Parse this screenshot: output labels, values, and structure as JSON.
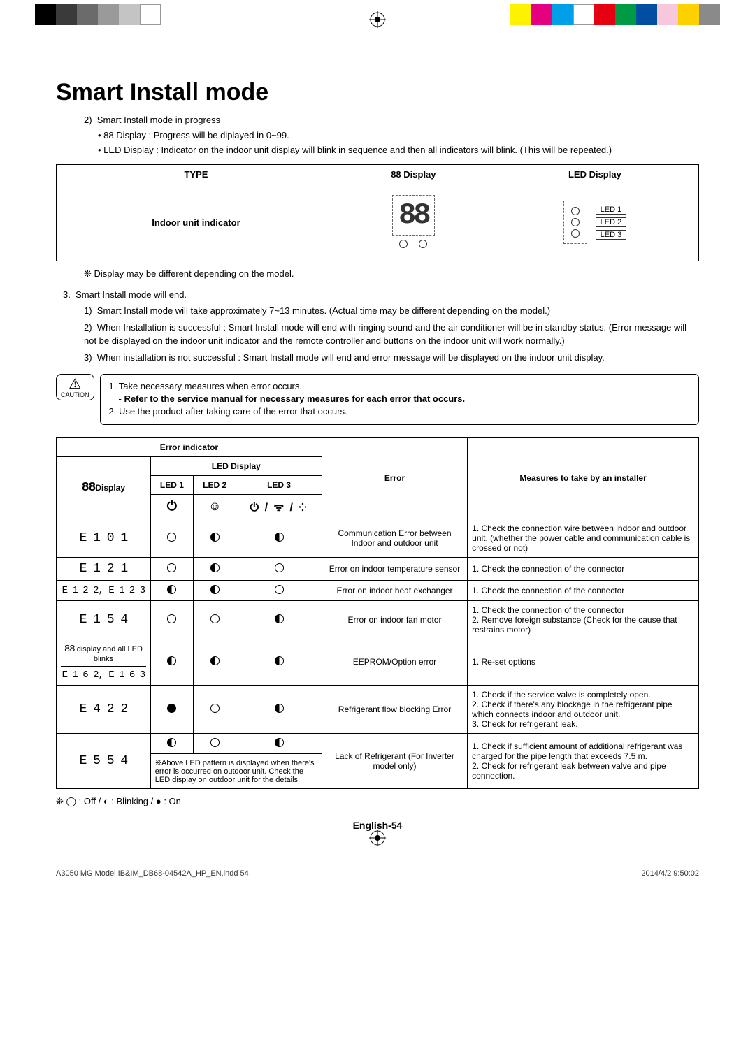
{
  "colorbars": {
    "left": [
      "#000000",
      "#3a3a3a",
      "#6b6b6b",
      "#9a9a9a",
      "#c4c4c4",
      "#ffffff"
    ],
    "right": [
      "#fff200",
      "#e4007f",
      "#00a0e9",
      "#ffffff",
      "#e60012",
      "#009944",
      "#004ea2",
      "#f7c8dc",
      "#fdd000",
      "#8a8a8a"
    ]
  },
  "title": "Smart Install mode",
  "intro": {
    "num": "2)",
    "line": "Smart Install mode in progress",
    "b1": "88 Display : Progress will be diplayed in 0~99.",
    "b2": "LED Display : Indicator on the indoor unit display will blink in sequence and then all indicators will blink. (This will be repeated.)"
  },
  "disp_table": {
    "h1": "TYPE",
    "h2": "88 Display",
    "h3": "LED Display",
    "row_label": "Indoor unit indicator",
    "seg": "88",
    "leds": [
      "LED 1",
      "LED 2",
      "LED 3"
    ]
  },
  "note1": "❊  Display may be different depending on the model.",
  "sec3": {
    "num": "3.",
    "line": "Smart Install mode will end.",
    "s1n": "1)",
    "s1": "Smart Install mode will take approximately 7~13 minutes. (Actual time may be different depending on the model.)",
    "s2n": "2)",
    "s2": "When Installation is successful : Smart Install mode will end with ringing sound and the air conditioner will be in standby status. (Error message will not be displayed on the indoor unit indicator and the remote controller and buttons on the indoor unit will work normally.)",
    "s3n": "3)",
    "s3": "When installation is not successful : Smart Install mode will end and error message will be displayed on the indoor unit display."
  },
  "caution": {
    "label": "CAUTION",
    "l1": "1. Take necessary measures when error occurs.",
    "l1a": "-  Refer to the service manual for necessary measures for each error that occurs.",
    "l2": "2. Use the product after taking care of the error that occurs."
  },
  "err_table": {
    "h_indicator": "Error indicator",
    "h_led": "LED Display",
    "h_l1": "LED 1",
    "h_l2": "LED 2",
    "h_l3": "LED 3",
    "h_disp": "Display",
    "h_88": "88",
    "h_err": "Error",
    "h_meas": "Measures to take by an installer",
    "led3_icons": "⏻ / ᯤ / ⁘",
    "led1_icon": "⏻",
    "led2_icon": "☺",
    "rows": [
      {
        "disp": "E 1 0 1",
        "l1": "off",
        "l2": "blink",
        "l3": "blink",
        "err": "Communication Error between Indoor and outdoor unit",
        "meas": "1. Check the connection wire between indoor and outdoor unit. (whether the power cable and communication cable is crossed or not)"
      },
      {
        "disp": "E 1 2 1",
        "l1": "off",
        "l2": "blink",
        "l3": "off",
        "err": "Error on indoor temperature sensor",
        "meas": "1. Check the connection of the connector"
      },
      {
        "disp": "E 1 2 2, E 1 2 3",
        "l1": "blink",
        "l2": "blink",
        "l3": "off",
        "err": "Error on indoor heat exchanger",
        "meas": "1. Check the connection of the connector"
      },
      {
        "disp": "E 1 5 4",
        "l1": "off",
        "l2": "off",
        "l3": "blink",
        "err": "Error on indoor fan motor",
        "meas": "1. Check the connection of the connector\n2. Remove foreign substance (Check for the cause that restrains motor)"
      },
      {
        "disp": "",
        "disp_note": "display and all LED blinks",
        "disp2": "E 1 6 2, E 1 6 3",
        "l1": "blink",
        "l2": "blink",
        "l3": "blink",
        "err": "EEPROM/Option error",
        "meas": "1. Re-set options"
      },
      {
        "disp": "E 4 2 2",
        "l1": "on",
        "l2": "off",
        "l3": "blink",
        "err": "Refrigerant flow blocking Error",
        "meas": "1. Check if the service valve is completely open.\n2. Check if there's any blockage in the refrigerant pipe which connects indoor and outdoor unit.\n3. Check for refrigerant leak."
      },
      {
        "disp": "E 5 5 4",
        "l1": "blink",
        "l2": "off",
        "l3": "blink",
        "pattern_note": "※Above LED pattern is displayed when there's error is occurred on outdoor unit. Check the LED display on outdoor unit for the details.",
        "err": "Lack of Refrigerant (For Inverter model only)",
        "meas": "1. Check if sufficient amount of additional refrigerant was charged for the pipe length that exceeds 7.5 m.\n2. Check for refrigerant leak between valve and pipe connection."
      }
    ]
  },
  "legend": "❊   ◯ : Off  /  ◐ : Blinking  /  ● : On",
  "pageno": "English-54",
  "footer": {
    "file": "A3050 MG Model IB&IM_DB68-04542A_HP_EN.indd   54",
    "date": "2014/4/2   9:50:02"
  }
}
